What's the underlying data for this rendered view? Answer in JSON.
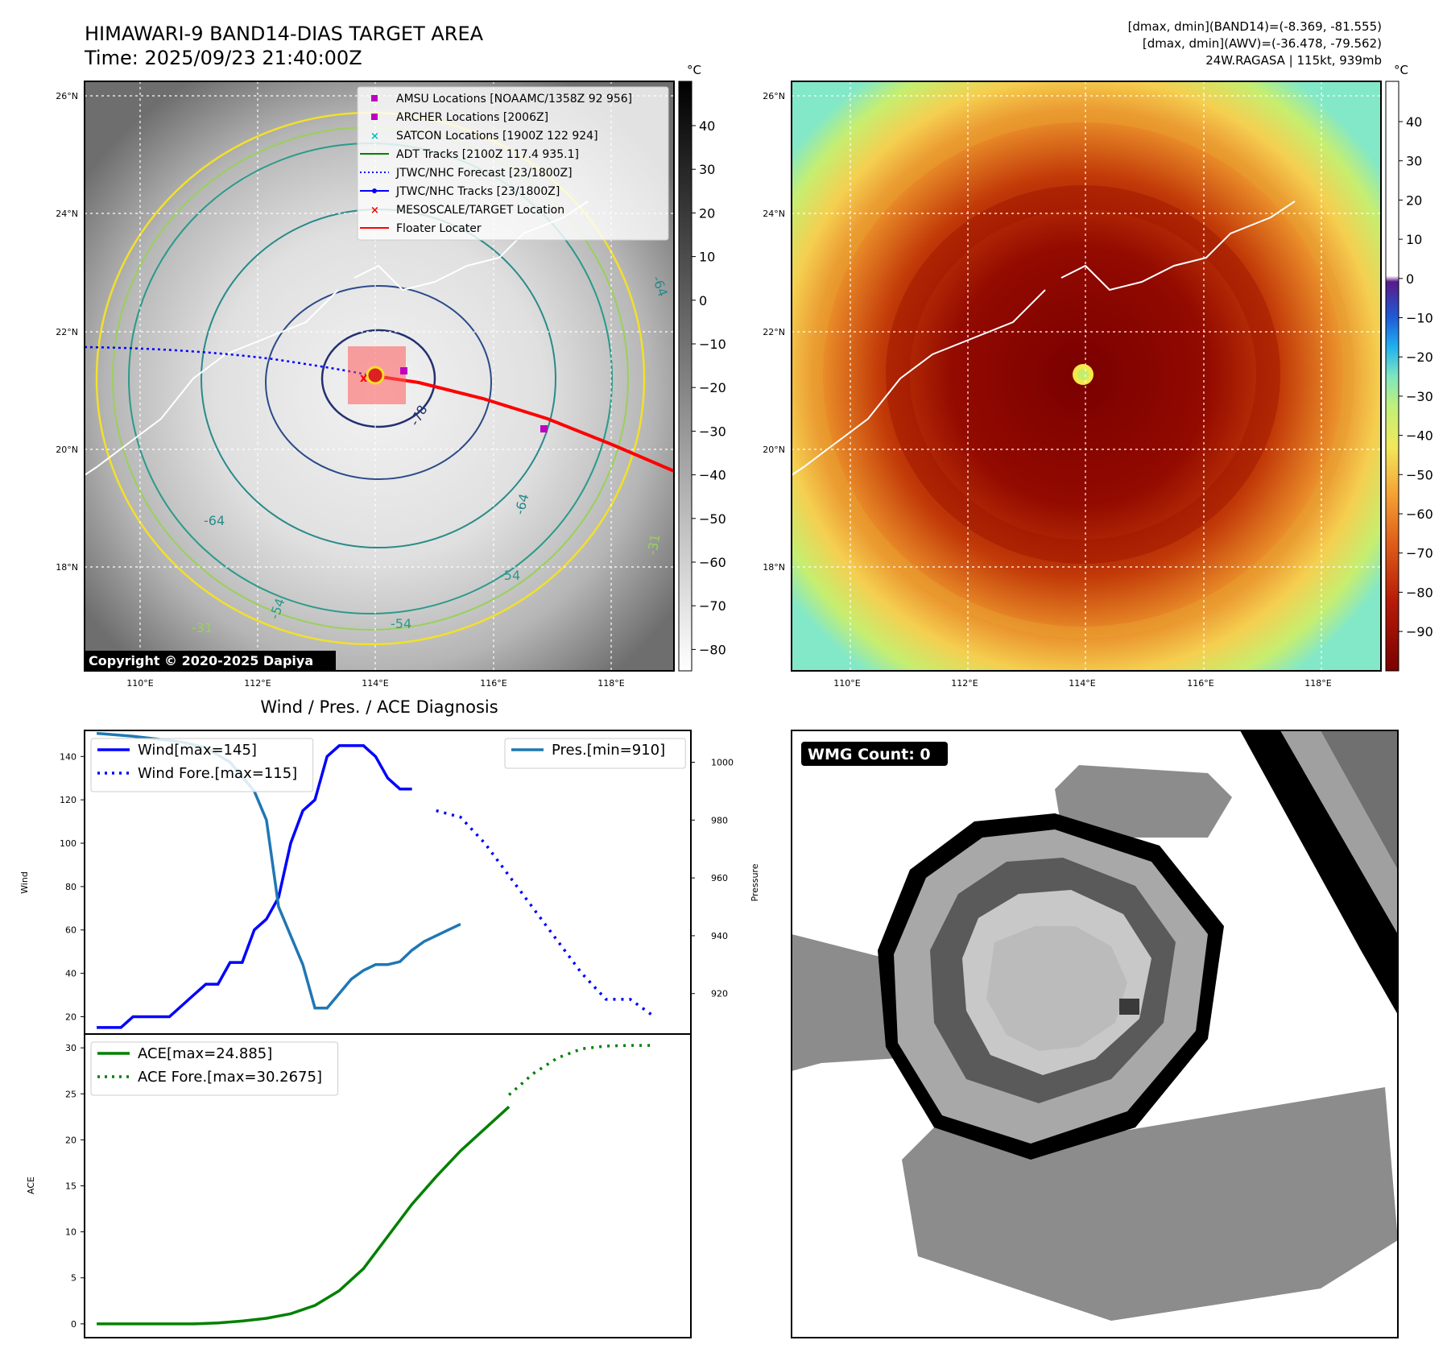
{
  "header": {
    "title_line1": "HIMAWARI-9 BAND14-DIAS TARGET AREA",
    "title_line2": "Time: 2025/09/23 21:40:00Z",
    "right_line1": "[dmax, dmin](BAND14)=(-8.369, -81.555)",
    "right_line2": "[dmax, dmin](AWV)=(-36.478, -79.562)",
    "right_line3": "24W.RAGASA | 115kt, 939mb"
  },
  "map_axes": {
    "lon_labels": [
      "110°E",
      "112°E",
      "114°E",
      "116°E",
      "118°E"
    ],
    "lat_labels": [
      "26°N",
      "24°N",
      "22°N",
      "20°N",
      "18°N"
    ],
    "lon_range": [
      109,
      119
    ],
    "lat_range": [
      16.3,
      26.3
    ]
  },
  "bw_colorbar": {
    "unit": "°C",
    "ticks": [
      "40",
      "30",
      "20",
      "10",
      "0",
      "−10",
      "−20",
      "−30",
      "−40",
      "−50",
      "−60",
      "−70",
      "−80"
    ]
  },
  "color_colorbar": {
    "unit": "°C",
    "ticks": [
      "40",
      "30",
      "20",
      "10",
      "0",
      "−10",
      "−20",
      "−30",
      "−40",
      "−50",
      "−60",
      "−70",
      "−80",
      "−90"
    ]
  },
  "legend_map": [
    {
      "label": "AMSU Locations [NOAAMC/1358Z 92 956]",
      "marker": "square",
      "color": "#bf00bf"
    },
    {
      "label": "ARCHER Locations [2006Z]",
      "marker": "square",
      "color": "#bf00bf"
    },
    {
      "label": "SATCON Locations [1900Z 122 924]",
      "marker": "x",
      "color": "#00bfbf"
    },
    {
      "label": "ADT Tracks [2100Z 117.4 935.1]",
      "marker": "line",
      "color": "#008000"
    },
    {
      "label": "JTWC/NHC Forecast [23/1800Z]",
      "marker": "dotted",
      "color": "#0000ff"
    },
    {
      "label": "JTWC/NHC Tracks [23/1800Z]",
      "marker": "line-dot",
      "color": "#0000ff"
    },
    {
      "label": "MESOSCALE/TARGET Location",
      "marker": "x",
      "color": "#ff0000"
    },
    {
      "label": "Floater Locater",
      "marker": "line",
      "color": "#ff0000"
    }
  ],
  "contour_labels": [
    "-64",
    "-64",
    "-31",
    "-31",
    "-54",
    "-54",
    "-64",
    "-78",
    "-54"
  ],
  "copyright": "Copyright © 2020-2025 Dapiya",
  "wmg": {
    "label": "WMG Count: 0"
  },
  "chart_data": [
    {
      "type": "line",
      "title": "Wind / Pres. / ACE Diagnosis",
      "ylabel": "Wind",
      "y2label": "Pressure",
      "ylim": [
        12,
        152
      ],
      "y2lim": [
        906,
        1011
      ],
      "yticks": [
        20,
        40,
        60,
        80,
        100,
        120,
        140
      ],
      "y2ticks": [
        920,
        940,
        960,
        980,
        1000
      ],
      "xlim": [
        -1,
        49
      ],
      "series": [
        {
          "name": "Wind[max=145]",
          "axis": "left",
          "style": "solid",
          "color": "#0000ff",
          "x": [
            0,
            2,
            3,
            6,
            7,
            8,
            9,
            10,
            11,
            12,
            13,
            14,
            15,
            16,
            17,
            18,
            19,
            20,
            21,
            22,
            23,
            24,
            25,
            26
          ],
          "y": [
            15,
            15,
            20,
            20,
            25,
            30,
            35,
            35,
            45,
            45,
            60,
            65,
            75,
            100,
            115,
            120,
            140,
            145,
            145,
            145,
            140,
            130,
            125,
            125
          ]
        },
        {
          "name": "Wind Fore.[max=115]",
          "axis": "left",
          "style": "dotted",
          "color": "#0000ff",
          "x": [
            28,
            30,
            32,
            34,
            36,
            38,
            40,
            42,
            44,
            46
          ],
          "y": [
            115,
            112,
            100,
            85,
            70,
            55,
            40,
            28,
            28,
            20
          ]
        },
        {
          "name": "Pres.[min=910]",
          "axis": "right",
          "style": "solid",
          "color": "#1f77b4",
          "x": [
            0,
            3,
            5,
            7,
            9,
            11,
            13,
            14,
            15,
            16,
            17,
            18,
            19,
            20,
            21,
            22,
            23,
            24,
            25,
            26,
            27,
            28,
            29,
            30
          ],
          "y": [
            1010,
            1009,
            1008,
            1007,
            1005,
            1000,
            990,
            980,
            950,
            940,
            930,
            915,
            915,
            920,
            925,
            928,
            930,
            930,
            931,
            935,
            938,
            940,
            942,
            944
          ]
        }
      ],
      "legend_left": [
        "Wind[max=145]",
        "Wind Fore.[max=115]"
      ],
      "legend_right": [
        "Pres.[min=910]"
      ]
    },
    {
      "type": "line",
      "ylabel": "ACE",
      "ylim": [
        -1.5,
        31.5
      ],
      "yticks": [
        0,
        5,
        10,
        15,
        20,
        25,
        30
      ],
      "xlim": [
        -1,
        49
      ],
      "series": [
        {
          "name": "ACE[max=24.885]",
          "style": "solid",
          "color": "#008000",
          "x": [
            0,
            4,
            8,
            10,
            12,
            14,
            16,
            18,
            20,
            22,
            24,
            26,
            28,
            30,
            32,
            34
          ],
          "y": [
            0,
            0,
            0,
            0.1,
            0.3,
            0.6,
            1.1,
            2,
            3.6,
            6,
            9.5,
            13,
            16,
            18.8,
            21.2,
            23.6
          ]
        },
        {
          "name": "ACE Fore.[max=30.2675]",
          "style": "dotted",
          "color": "#008000",
          "x": [
            34,
            36,
            38,
            40,
            42,
            44,
            46
          ],
          "y": [
            24.885,
            27.2,
            28.9,
            29.9,
            30.2,
            30.2675,
            30.2675
          ]
        }
      ]
    }
  ]
}
